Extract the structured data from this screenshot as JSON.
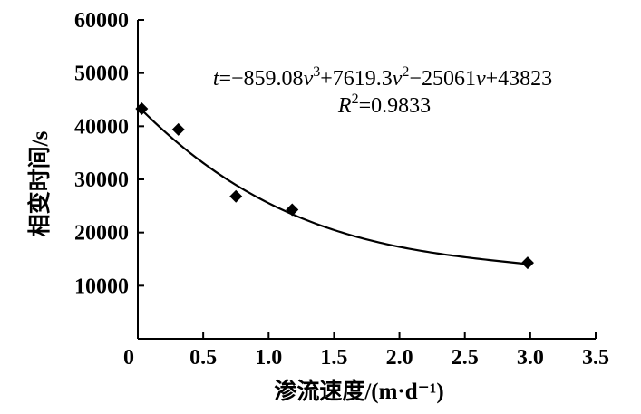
{
  "chart_data": {
    "type": "scatter",
    "title": "",
    "xlabel": "渗流速度/(m·d⁻¹)",
    "ylabel": "相变时间/s",
    "xlim": [
      0,
      3.5
    ],
    "ylim": [
      0,
      60000
    ],
    "x_ticks": [
      0,
      0.5,
      1.0,
      1.5,
      2.0,
      2.5,
      3.0,
      3.5
    ],
    "x_tick_labels": [
      "0",
      "0.5",
      "1.0",
      "1.5",
      "2.0",
      "2.5",
      "3.0",
      "3.5"
    ],
    "y_ticks": [
      10000,
      20000,
      30000,
      40000,
      50000,
      60000
    ],
    "y_tick_labels": [
      "10000",
      "20000",
      "30000",
      "40000",
      "50000",
      "60000"
    ],
    "grid": false,
    "series": [
      {
        "marker": "diamond",
        "color": "#000000",
        "x": [
          0.03,
          0.31,
          0.75,
          1.18,
          2.98
        ],
        "y": [
          43300,
          39400,
          26800,
          24300,
          14300
        ]
      }
    ],
    "fit": {
      "type": "polynomial",
      "coefficients": [
        -859.08,
        7619.3,
        -25061,
        43823
      ],
      "x_range": [
        0.03,
        2.98
      ],
      "color": "#000000"
    },
    "annotations": {
      "equation": {
        "var_t": "t",
        "eq1": "=−859.08",
        "var_v1": "v",
        "sup1": "3",
        "eq2": "+7619.3",
        "var_v2": "v",
        "sup2": "2",
        "eq3": "−25061",
        "var_v3": "v",
        "eq4": "+43823"
      },
      "r2": {
        "var_r": "R",
        "sup": "2",
        "value": "=0.9833"
      }
    }
  }
}
